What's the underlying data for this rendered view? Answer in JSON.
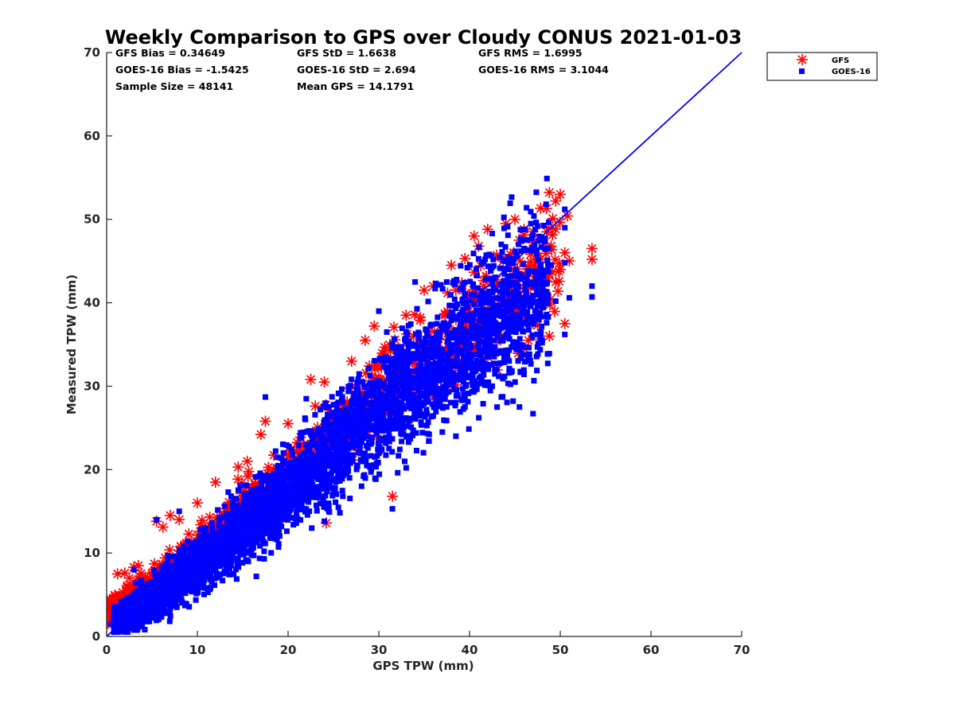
{
  "chart_data": {
    "type": "scatter",
    "title": "Weekly Comparison to GPS over Cloudy CONUS 2021-01-03",
    "xlabel": "GPS TPW (mm)",
    "ylabel": "Measured TPW (mm)",
    "xlim": [
      0,
      70
    ],
    "ylim": [
      0,
      70
    ],
    "x_ticks": [
      "0",
      "10",
      "20",
      "30",
      "40",
      "50",
      "60",
      "70"
    ],
    "y_ticks": [
      "0",
      "10",
      "20",
      "30",
      "40",
      "50",
      "60",
      "70"
    ],
    "grid": false,
    "legend": {
      "placement": "outside-top-right",
      "entries": [
        {
          "name": "GFS",
          "marker": "asterisk",
          "color": "#ff0000"
        },
        {
          "name": "GOES-16",
          "marker": "square",
          "color": "#0000ff"
        }
      ]
    },
    "annotations": {
      "gfs_bias": "GFS Bias = 0.34649",
      "gfs_std": "GFS StD = 1.6638",
      "gfs_rms": "GFS RMS = 1.6995",
      "goes_bias": "GOES-16 Bias = -1.5425",
      "goes_std": "GOES-16 StD = 2.694",
      "goes_rms": "GOES-16 RMS = 3.1044",
      "sample_size": "Sample Size = 48141",
      "mean_gps": "Mean GPS = 14.1791"
    },
    "reference_line": {
      "x": [
        0,
        70
      ],
      "y": [
        0,
        70
      ],
      "color": "#0000ff"
    },
    "series": [
      {
        "name": "GFS",
        "color": "#ff0000",
        "marker": "asterisk",
        "points": [
          [
            0.5,
            3.5
          ],
          [
            1.0,
            4.8
          ],
          [
            1.2,
            7.5
          ],
          [
            2.0,
            7.6
          ],
          [
            3.0,
            8.3
          ],
          [
            5.5,
            13.8
          ],
          [
            7.0,
            14.5
          ],
          [
            6.2,
            13.1
          ],
          [
            12.0,
            18.5
          ],
          [
            14.5,
            20.3
          ],
          [
            17.5,
            25.8
          ],
          [
            17.0,
            24.2
          ],
          [
            22.5,
            30.8
          ],
          [
            24.0,
            30.5
          ],
          [
            24.2,
            13.6
          ],
          [
            28.5,
            35.5
          ],
          [
            31.5,
            16.8
          ],
          [
            29.5,
            37.2
          ],
          [
            30.5,
            33.8
          ],
          [
            35.0,
            41.5
          ],
          [
            36.0,
            42.0
          ],
          [
            38.0,
            44.5
          ],
          [
            39.5,
            45.3
          ],
          [
            40.5,
            48.0
          ],
          [
            41.0,
            46.8
          ],
          [
            42.0,
            48.8
          ],
          [
            44.0,
            49.5
          ],
          [
            45.0,
            50.0
          ],
          [
            46.0,
            48.8
          ],
          [
            44.5,
            45.8
          ],
          [
            43.0,
            45.7
          ],
          [
            45.5,
            47.5
          ],
          [
            47.0,
            47.2
          ],
          [
            48.5,
            51.3
          ],
          [
            49.5,
            52.2
          ],
          [
            50.0,
            53.0
          ],
          [
            50.8,
            50.4
          ],
          [
            48.5,
            48.5
          ],
          [
            49.0,
            46.8
          ],
          [
            50.5,
            46.0
          ],
          [
            50.0,
            44.0
          ],
          [
            51.0,
            45.0
          ],
          [
            53.5,
            46.5
          ],
          [
            53.5,
            45.2
          ],
          [
            50.5,
            37.5
          ],
          [
            48.8,
            36.0
          ],
          [
            47.5,
            37.3
          ],
          [
            46.5,
            35.5
          ],
          [
            46.0,
            34.5
          ],
          [
            47.0,
            40.0
          ],
          [
            49.5,
            42.5
          ],
          [
            42.0,
            41.0
          ],
          [
            44.0,
            42.5
          ],
          [
            38.5,
            38.0
          ],
          [
            33.0,
            38.5
          ],
          [
            27.0,
            33.0
          ],
          [
            20.0,
            25.5
          ],
          [
            15.5,
            21.0
          ],
          [
            10.0,
            16.0
          ],
          [
            8.0,
            14.0
          ],
          [
            3.5,
            8.5
          ],
          [
            2.5,
            7.0
          ],
          [
            0.3,
            2.5
          ]
        ]
      },
      {
        "name": "GOES-16",
        "color": "#0000ff",
        "marker": "square",
        "band_center": [
          [
            0,
            0.5
          ],
          [
            10,
            8.5
          ],
          [
            20,
            17.5
          ],
          [
            30,
            27.0
          ],
          [
            40,
            35.5
          ],
          [
            50,
            43.0
          ]
        ],
        "points": [
          [
            17.5,
            28.7
          ],
          [
            5.5,
            14.0
          ],
          [
            8.0,
            15.0
          ],
          [
            3.0,
            8.0
          ],
          [
            31.5,
            15.3
          ],
          [
            24.0,
            13.8
          ],
          [
            42.5,
            48.3
          ],
          [
            43.5,
            47.0
          ],
          [
            46.0,
            46.5
          ],
          [
            50.5,
            51.2
          ],
          [
            50.5,
            49.0
          ],
          [
            49.0,
            44.5
          ],
          [
            50.5,
            44.8
          ],
          [
            53.5,
            42.0
          ],
          [
            53.5,
            40.7
          ],
          [
            51.0,
            40.6
          ],
          [
            49.5,
            40.2
          ],
          [
            48.5,
            38.6
          ],
          [
            48.5,
            37.6
          ],
          [
            48.8,
            33.9
          ],
          [
            50.5,
            36.2
          ],
          [
            47.0,
            26.7
          ],
          [
            45.5,
            27.5
          ],
          [
            43.5,
            28.7
          ],
          [
            38.5,
            24.0
          ],
          [
            37.0,
            24.5
          ],
          [
            34.0,
            42.5
          ],
          [
            30.0,
            39.0
          ],
          [
            22.0,
            28.5
          ],
          [
            16.5,
            7.2
          ],
          [
            14.0,
            7.5
          ],
          [
            19.0,
            12.5
          ],
          [
            39.5,
            27.5
          ],
          [
            42.5,
            30.0
          ],
          [
            41.5,
            33.0
          ],
          [
            1.2,
            0.8
          ],
          [
            2.0,
            1.2
          ],
          [
            0.5,
            1.5
          ]
        ]
      }
    ]
  }
}
